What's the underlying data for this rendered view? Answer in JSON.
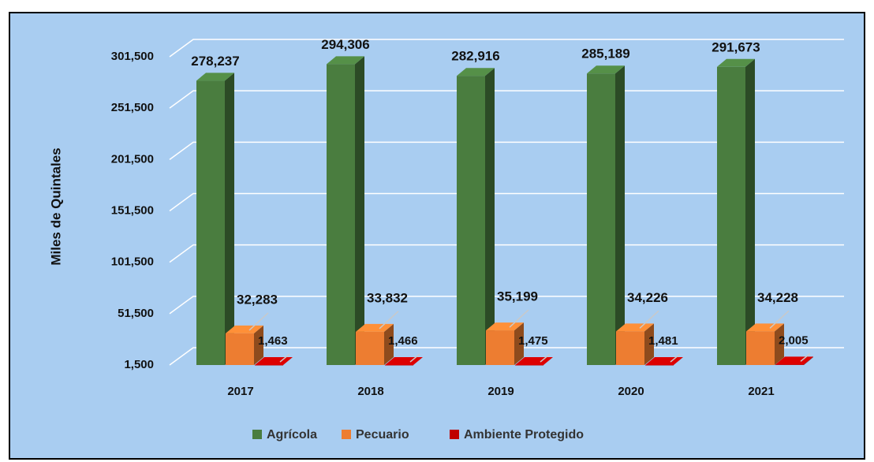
{
  "chart_data": {
    "type": "bar3d",
    "y_axis_label": "Miles de Quintales",
    "categories": [
      "2017",
      "2018",
      "2019",
      "2020",
      "2021"
    ],
    "series": [
      {
        "name": "Agrícola",
        "color": "#4a7d3f",
        "values": [
          278237,
          294306,
          282916,
          285189,
          291673
        ],
        "value_labels": [
          "278,237",
          "294,306",
          "282,916",
          "285,189",
          "291,673"
        ]
      },
      {
        "name": "Pecuario",
        "color": "#ed7d31",
        "values": [
          32283,
          33832,
          35199,
          34226,
          34228
        ],
        "value_labels": [
          "32,283",
          "33,832",
          "35,199",
          "34,226",
          "34,228"
        ]
      },
      {
        "name": "Ambiente Protegido",
        "color": "#c00000",
        "values": [
          1463,
          1466,
          1475,
          1481,
          2005
        ],
        "value_labels": [
          "1,463",
          "1,466",
          "1,475",
          "1,481",
          "2,005"
        ]
      }
    ],
    "ylim": [
      1500,
      301500
    ],
    "yticks": [
      {
        "value": 1500,
        "label": "1,500"
      },
      {
        "value": 51500,
        "label": "51,500"
      },
      {
        "value": 101500,
        "label": "101,500"
      },
      {
        "value": 151500,
        "label": "151,500"
      },
      {
        "value": 201500,
        "label": "201,500"
      },
      {
        "value": 251500,
        "label": "251,500"
      },
      {
        "value": 301500,
        "label": "301,500"
      }
    ],
    "grid": true,
    "legend": "bottom"
  }
}
